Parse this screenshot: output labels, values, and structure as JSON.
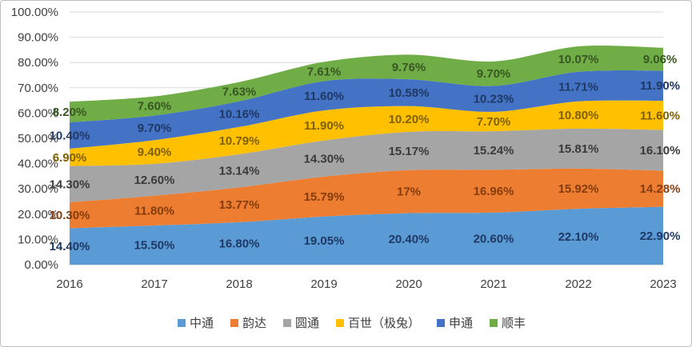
{
  "chart_data": {
    "type": "area",
    "stacked": true,
    "title": "",
    "xlabel": "",
    "ylabel": "",
    "categories": [
      "2016",
      "2017",
      "2018",
      "2019",
      "2020",
      "2021",
      "2022",
      "2023"
    ],
    "ylim": [
      0,
      100
    ],
    "yticks": [
      "0.00%",
      "10.00%",
      "20.00%",
      "30.00%",
      "40.00%",
      "50.00%",
      "60.00%",
      "70.00%",
      "80.00%",
      "90.00%",
      "100.00%"
    ],
    "grid": true,
    "legend_position": "bottom",
    "series": [
      {
        "name": "中通",
        "color": "#5b9bd5",
        "label_color": "#1f3864",
        "values": [
          14.4,
          15.5,
          16.8,
          19.05,
          20.4,
          20.6,
          22.1,
          22.9
        ],
        "labels": [
          "14.40%",
          "15.50%",
          "16.80%",
          "19.05%",
          "20.40%",
          "20.60%",
          "22.10%",
          "22.90%"
        ]
      },
      {
        "name": "韵达",
        "color": "#ed7d31",
        "label_color": "#843c0c",
        "values": [
          10.3,
          11.8,
          13.77,
          15.79,
          17,
          16.96,
          15.92,
          14.28
        ],
        "labels": [
          "10.30%",
          "11.80%",
          "13.77%",
          "15.79%",
          "17%",
          "16.96%",
          "15.92%",
          "14.28%"
        ]
      },
      {
        "name": "圆通",
        "color": "#a5a5a5",
        "label_color": "#3a3a3a",
        "values": [
          14.3,
          12.6,
          13.14,
          14.3,
          15.17,
          15.24,
          15.81,
          16.1
        ],
        "labels": [
          "14.30%",
          "12.60%",
          "13.14%",
          "14.30%",
          "15.17%",
          "15.24%",
          "15.81%",
          "16.10%"
        ]
      },
      {
        "name": "百世（极兔）",
        "color": "#ffc000",
        "label_color": "#7f6000",
        "values": [
          6.9,
          9.4,
          10.79,
          11.9,
          10.2,
          7.7,
          10.8,
          11.6
        ],
        "labels": [
          "6.90%",
          "9.40%",
          "10.79%",
          "11.90%",
          "10.20%",
          "7.70%",
          "10.80%",
          "11.60%"
        ]
      },
      {
        "name": "申通",
        "color": "#4472c4",
        "label_color": "#1f3864",
        "values": [
          10.4,
          9.7,
          10.16,
          11.6,
          10.58,
          10.23,
          11.71,
          11.9
        ],
        "labels": [
          "10.40%",
          "9.70%",
          "10.16%",
          "11.60%",
          "10.58%",
          "10.23%",
          "11.71%",
          "11.90%"
        ]
      },
      {
        "name": "顺丰",
        "color": "#70ad47",
        "label_color": "#385723",
        "values": [
          8.2,
          7.6,
          7.63,
          7.61,
          9.76,
          9.7,
          10.07,
          9.06
        ],
        "labels": [
          "8.20%",
          "7.60%",
          "7.63%",
          "7.61%",
          "9.76%",
          "9.70%",
          "10.07%",
          "9.06%"
        ]
      }
    ]
  }
}
